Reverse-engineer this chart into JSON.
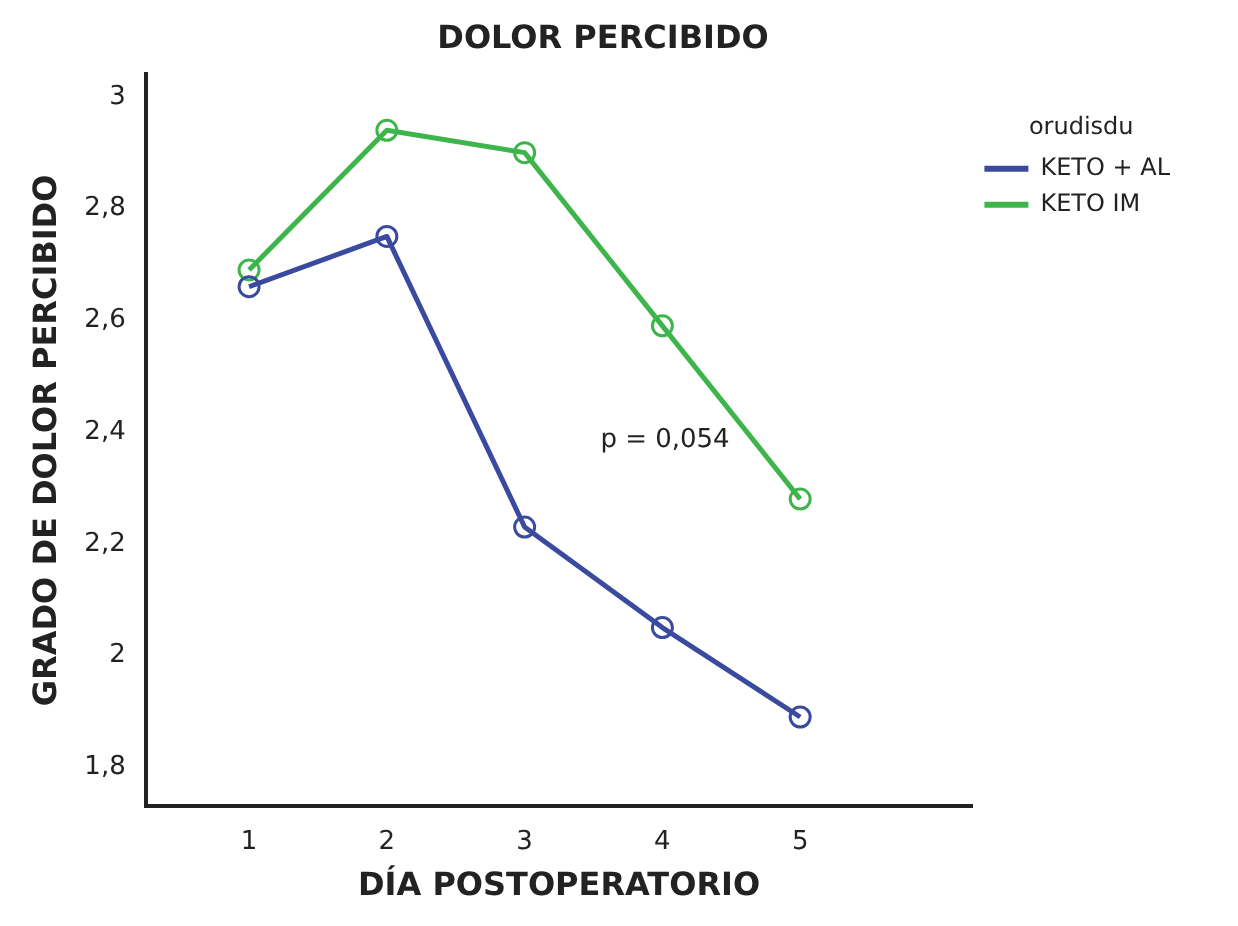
{
  "chart_data": {
    "type": "line",
    "title": "DOLOR PERCIBIDO",
    "xlabel": "DÍA POSTOPERATORIO",
    "ylabel": "GRADO DE DOLOR PERCIBIDO",
    "legend_title": "orudisdu",
    "x": [
      1,
      2,
      3,
      4,
      5
    ],
    "series": [
      {
        "name": "KETO + AL",
        "color": "#3a4a9f",
        "values": [
          2.66,
          2.75,
          2.23,
          2.05,
          1.89
        ]
      },
      {
        "name": "KETO IM",
        "color": "#3db54a",
        "values": [
          2.69,
          2.94,
          2.9,
          2.59,
          2.28
        ]
      }
    ],
    "xlim": [
      0.25,
      6.25
    ],
    "xticks": [
      1,
      2,
      3,
      4,
      5
    ],
    "ylim": [
      1.73,
      3.04
    ],
    "yticks": [
      {
        "value": 1.8,
        "label": "1,8"
      },
      2,
      {
        "value": 2.2,
        "label": "2,2"
      },
      {
        "value": 2.4,
        "label": "2,4"
      },
      {
        "value": 2.6,
        "label": "2,6"
      },
      {
        "value": 2.8,
        "label": "2,8"
      },
      3
    ],
    "annotations": [
      "p = 0,054"
    ],
    "legend": "right",
    "marker": "circle",
    "line_style": "solid",
    "grid": false
  }
}
